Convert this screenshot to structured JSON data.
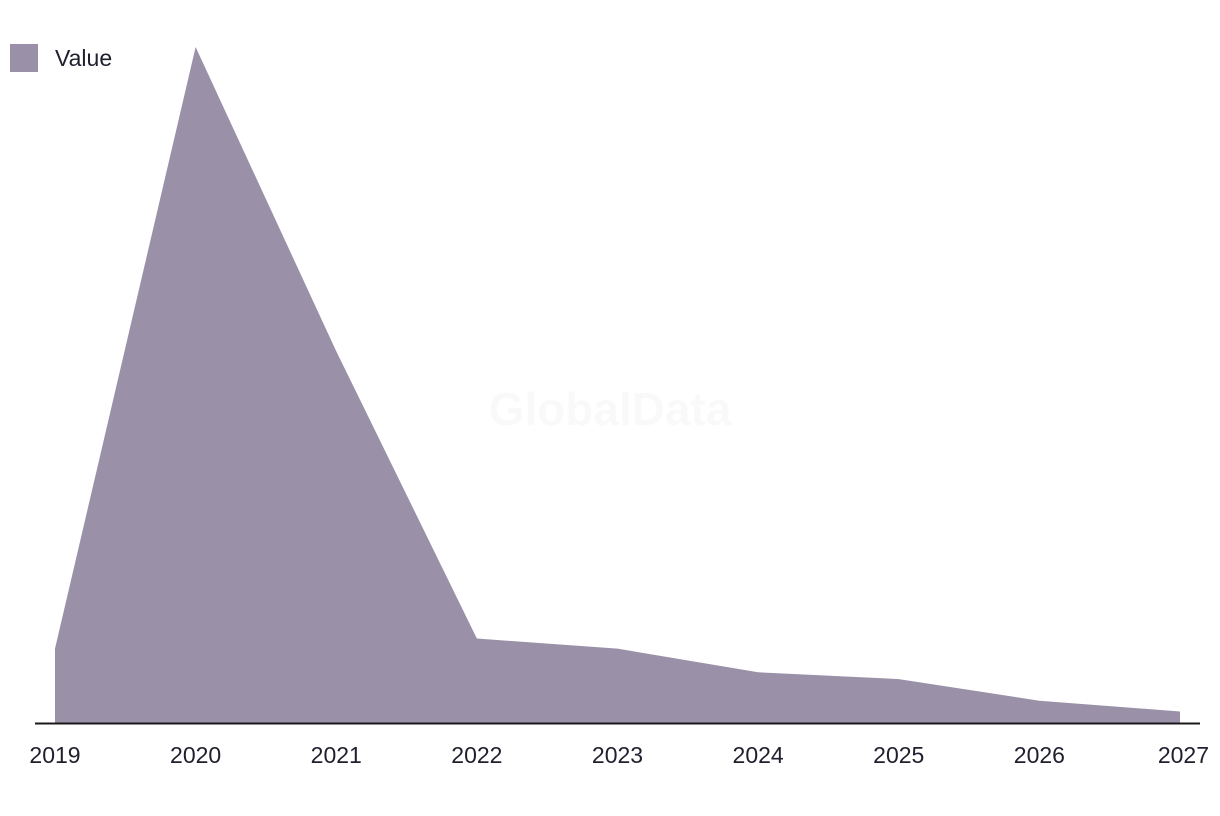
{
  "chart_data": {
    "type": "area",
    "x": [
      "2019",
      "2020",
      "2021",
      "2022",
      "2023",
      "2024",
      "2025",
      "2026",
      "2027"
    ],
    "series": [
      {
        "name": "Value",
        "values": [
          11,
          100,
          55,
          12.5,
          11,
          7.5,
          6.5,
          3.3,
          1.7
        ],
        "color": "#9a91a9"
      }
    ],
    "ylim": [
      0,
      104
    ],
    "grid": false,
    "legend": "top-left",
    "watermark": "GlobalData",
    "axis_color": "#1a1a1a"
  }
}
